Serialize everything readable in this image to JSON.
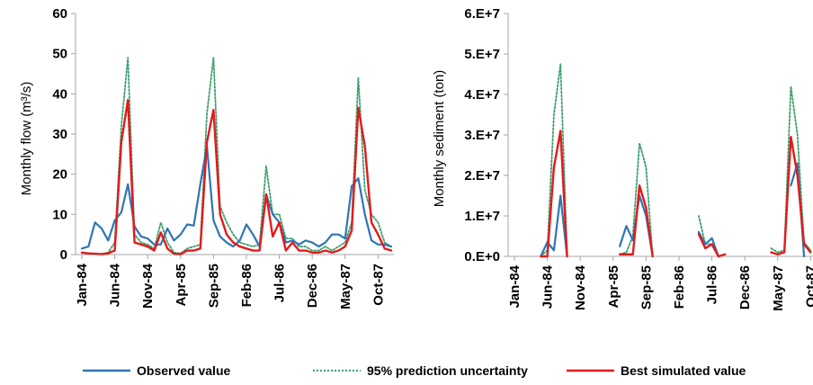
{
  "legend": {
    "observed": "Observed value",
    "uncertainty": "95% prediction uncertainty",
    "simulated": "Best simulated  value"
  },
  "colors": {
    "observed": "#2e75b6",
    "uncertainty": "#3f9f6b",
    "simulated": "#e31a1c"
  },
  "x_tick_labels": [
    "Jan-84",
    "Jun-84",
    "Nov-84",
    "Apr-85",
    "Sep-85",
    "Feb-86",
    "Jul-86",
    "Dec-86",
    "May-87",
    "Oct-87"
  ],
  "chart_data": [
    {
      "type": "line",
      "ylabel": "Monthly flow (m³/s)",
      "ylim": [
        0,
        60
      ],
      "y_ticks": [
        "0",
        "10",
        "20",
        "30",
        "40",
        "50",
        "60"
      ],
      "grid": false,
      "legend_position": "bottom",
      "x": [
        "Jan-84",
        "Feb-84",
        "Mar-84",
        "Apr-84",
        "May-84",
        "Jun-84",
        "Jul-84",
        "Aug-84",
        "Sep-84",
        "Oct-84",
        "Nov-84",
        "Dec-84",
        "Jan-85",
        "Feb-85",
        "Mar-85",
        "Apr-85",
        "May-85",
        "Jun-85",
        "Jul-85",
        "Aug-85",
        "Sep-85",
        "Oct-85",
        "Nov-85",
        "Dec-85",
        "Jan-86",
        "Feb-86",
        "Mar-86",
        "Apr-86",
        "May-86",
        "Jun-86",
        "Jul-86",
        "Aug-86",
        "Sep-86",
        "Oct-86",
        "Nov-86",
        "Dec-86",
        "Jan-87",
        "Feb-87",
        "Mar-87",
        "Apr-87",
        "May-87",
        "Jun-87",
        "Jul-87",
        "Aug-87",
        "Sep-87",
        "Oct-87",
        "Nov-87",
        "Dec-87"
      ],
      "series": [
        {
          "name": "Observed value",
          "values": [
            1.5,
            2,
            8,
            6.5,
            3.5,
            8.5,
            10.5,
            17.5,
            7,
            4.5,
            4,
            2.5,
            2.5,
            6.5,
            3.5,
            5,
            7.5,
            7.2,
            17.5,
            27,
            8.5,
            4.5,
            3,
            2,
            3.5,
            7.5,
            5,
            2,
            15,
            10,
            8,
            3,
            3.5,
            2.5,
            3.5,
            3,
            2,
            3,
            5,
            5,
            4,
            17,
            19,
            10,
            3.5,
            2.5,
            2.5,
            2
          ]
        },
        {
          "name": "95% prediction uncertainty",
          "values": [
            0.5,
            0.3,
            0.2,
            0.2,
            0.5,
            3,
            32,
            49,
            5,
            3,
            2.5,
            1.5,
            8,
            3,
            0.5,
            0.3,
            1.5,
            2,
            2.5,
            35,
            49,
            12,
            8,
            5,
            3,
            2.5,
            2,
            2.5,
            22,
            10,
            10,
            4,
            4,
            2,
            2,
            1,
            1,
            2,
            1,
            2,
            3,
            8,
            44,
            16,
            10,
            8,
            3,
            2
          ]
        },
        {
          "name": "Best simulated  value",
          "values": [
            0.5,
            0.3,
            0.2,
            0.1,
            0.3,
            1,
            28,
            38.5,
            3,
            2.5,
            2,
            1,
            5.5,
            1.5,
            0.2,
            0.1,
            1,
            1,
            1.5,
            28,
            36,
            10,
            5,
            3,
            2,
            1.5,
            1,
            1,
            15,
            4.5,
            8,
            1,
            3,
            1,
            1,
            0.5,
            0.5,
            1,
            0.5,
            1,
            2,
            6,
            36.5,
            27,
            8,
            5,
            1.5,
            1
          ]
        }
      ]
    },
    {
      "type": "line",
      "ylabel": "Monthly sediment (ton)",
      "ylim": [
        0,
        60000000
      ],
      "y_ticks": [
        "0.E+0",
        "1.E+7",
        "2.E+7",
        "3.E+7",
        "4.E+7",
        "5.E+7",
        "6.E+7"
      ],
      "grid": false,
      "legend_position": "bottom",
      "x": [
        "Jan-84",
        "Feb-84",
        "Mar-84",
        "Apr-84",
        "May-84",
        "Jun-84",
        "Jul-84",
        "Aug-84",
        "Sep-84",
        "Oct-84",
        "Nov-84",
        "Dec-84",
        "Jan-85",
        "Feb-85",
        "Mar-85",
        "Apr-85",
        "May-85",
        "Jun-85",
        "Jul-85",
        "Aug-85",
        "Sep-85",
        "Oct-85",
        "Nov-85",
        "Dec-85",
        "Jan-86",
        "Feb-86",
        "Mar-86",
        "Apr-86",
        "May-86",
        "Jun-86",
        "Jul-86",
        "Aug-86",
        "Sep-86",
        "Oct-86",
        "Nov-86",
        "Dec-86",
        "Jan-87",
        "Feb-87",
        "Mar-87",
        "Apr-87",
        "May-87",
        "Jun-87",
        "Jul-87",
        "Aug-87",
        "Sep-87",
        "Oct-87",
        "Nov-87",
        "Dec-87"
      ],
      "series": [
        {
          "name": "Observed value",
          "values": [
            null,
            null,
            null,
            null,
            0,
            3500000,
            1500000,
            15000000,
            0,
            null,
            null,
            null,
            null,
            null,
            null,
            null,
            2500000,
            7500000,
            4000000,
            15000000,
            10000000,
            0,
            null,
            null,
            null,
            null,
            null,
            null,
            6000000,
            3000000,
            4500000,
            0,
            null,
            null,
            null,
            null,
            null,
            null,
            null,
            null,
            null,
            null,
            17500000,
            23000000,
            0,
            null,
            null,
            null
          ]
        },
        {
          "name": "95% prediction uncertainty",
          "values": [
            null,
            null,
            null,
            null,
            0,
            1500000,
            35000000,
            47500000,
            0,
            null,
            null,
            null,
            null,
            null,
            null,
            null,
            500000,
            1000000,
            5000000,
            28000000,
            22000000,
            0,
            null,
            null,
            null,
            null,
            null,
            null,
            10000000,
            3000000,
            3000000,
            0,
            null,
            null,
            null,
            null,
            null,
            null,
            null,
            2000000,
            1000000,
            1500000,
            42000000,
            30000000,
            3500000,
            1500000,
            null,
            null
          ]
        },
        {
          "name": "Best simulated  value",
          "values": [
            null,
            null,
            null,
            null,
            0,
            0,
            22000000,
            31000000,
            0,
            null,
            null,
            null,
            null,
            null,
            null,
            null,
            500000,
            500000,
            500000,
            17500000,
            12000000,
            0,
            null,
            null,
            null,
            null,
            null,
            null,
            5500000,
            2000000,
            3000000,
            0,
            500000,
            null,
            null,
            null,
            null,
            null,
            null,
            1000000,
            500000,
            1000000,
            29500000,
            20000000,
            3000000,
            1000000,
            null,
            null
          ]
        }
      ]
    }
  ]
}
